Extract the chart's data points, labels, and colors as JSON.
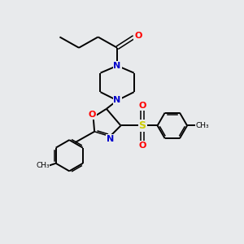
{
  "background_color": "#e8eaec",
  "atom_colors": {
    "C": "#000000",
    "N": "#0000cc",
    "O": "#ff0000",
    "S": "#cccc00"
  },
  "bond_color": "#000000",
  "figsize": [
    3.0,
    3.0
  ],
  "dpi": 100
}
